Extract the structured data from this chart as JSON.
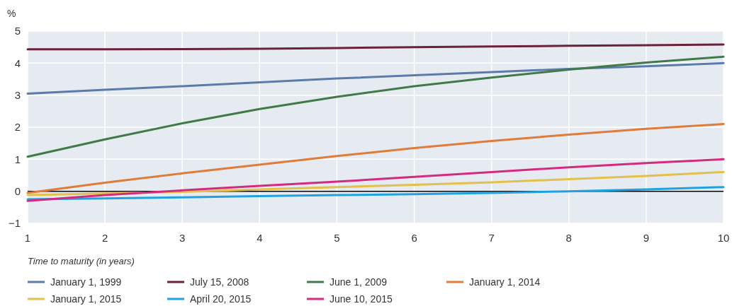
{
  "chart_data": {
    "type": "line",
    "ylabel": "%",
    "xlabel": "Time to maturity (in years)",
    "x": [
      1,
      2,
      3,
      4,
      5,
      6,
      7,
      8,
      9,
      10
    ],
    "series": [
      {
        "name": "January 1, 1999",
        "color": "#5b7bab",
        "values": [
          3.05,
          3.17,
          3.28,
          3.4,
          3.52,
          3.62,
          3.72,
          3.82,
          3.9,
          4.0
        ]
      },
      {
        "name": "July 15, 2008",
        "color": "#6b2238",
        "values": [
          4.43,
          4.43,
          4.44,
          4.45,
          4.47,
          4.5,
          4.52,
          4.54,
          4.56,
          4.58
        ]
      },
      {
        "name": "June 1, 2009",
        "color": "#3f7a48",
        "values": [
          1.08,
          1.62,
          2.12,
          2.57,
          2.95,
          3.28,
          3.55,
          3.8,
          4.02,
          4.2
        ]
      },
      {
        "name": "January 1, 2014",
        "color": "#e07b39",
        "values": [
          -0.05,
          0.27,
          0.56,
          0.83,
          1.1,
          1.35,
          1.57,
          1.77,
          1.95,
          2.1
        ]
      },
      {
        "name": "January 1, 2015",
        "color": "#e3c04a",
        "values": [
          -0.12,
          -0.07,
          -0.02,
          0.06,
          0.13,
          0.2,
          0.28,
          0.38,
          0.48,
          0.6
        ]
      },
      {
        "name": "April 20, 2015",
        "color": "#1ea2e0",
        "values": [
          -0.25,
          -0.22,
          -0.19,
          -0.15,
          -0.12,
          -0.09,
          -0.05,
          0.0,
          0.06,
          0.13
        ]
      },
      {
        "name": "June 10, 2015",
        "color": "#d52b7e",
        "values": [
          -0.3,
          -0.12,
          0.03,
          0.17,
          0.3,
          0.45,
          0.6,
          0.75,
          0.88,
          1.0
        ]
      }
    ],
    "xlim": [
      1,
      10
    ],
    "xticks": [
      1,
      2,
      3,
      4,
      5,
      6,
      7,
      8,
      9,
      10
    ],
    "ylim": [
      -1,
      5
    ],
    "yticks": [
      -1,
      0,
      1,
      2,
      3,
      4,
      5
    ],
    "ref_lines": [
      {
        "axis": "y",
        "value": 0,
        "color": "#000000"
      }
    ],
    "grid": true,
    "legend": "bottom",
    "line_style": "solid"
  }
}
